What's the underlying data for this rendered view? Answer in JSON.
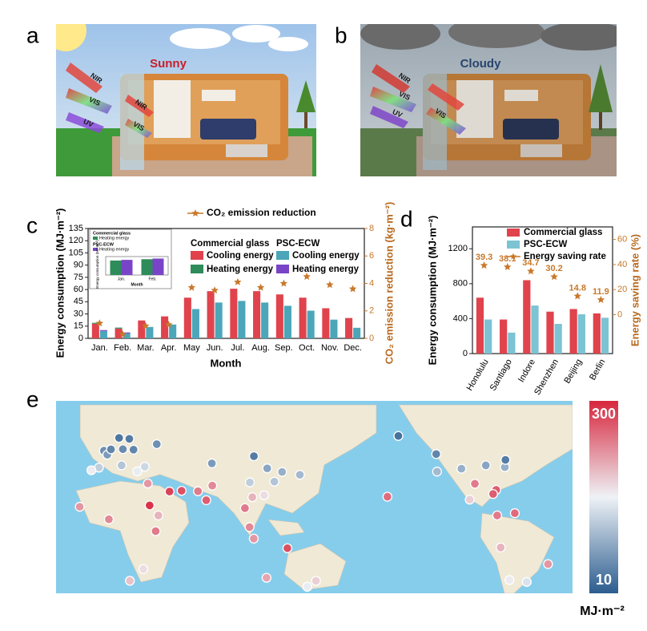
{
  "panel_labels": [
    "a",
    "b",
    "c",
    "d",
    "e"
  ],
  "scenes": [
    {
      "condition": "Sunny",
      "rays": [
        "NIR",
        "VIS",
        "UV",
        "NIR",
        "VIS"
      ]
    },
    {
      "condition": "Cloudy",
      "rays": [
        "NIR",
        "VIS",
        "UV",
        "VIS"
      ]
    }
  ],
  "chart_data": [
    {
      "type": "bar",
      "x_label": "Month",
      "y_label": "Energy consumption (MJ·m⁻²)",
      "y2_label": "CO₂ emission reduction (kg·m⁻²)",
      "categories": [
        "Jan.",
        "Feb.",
        "Mar.",
        "Apr.",
        "May",
        "Jun.",
        "Jul.",
        "Aug.",
        "Sep.",
        "Oct.",
        "Nov.",
        "Dec."
      ],
      "ylim": [
        0,
        135
      ],
      "yticks": [
        0,
        15,
        30,
        45,
        60,
        75,
        90,
        105,
        120,
        135
      ],
      "y2lim": [
        0,
        8
      ],
      "y2ticks": [
        0,
        2,
        4,
        6,
        8
      ],
      "legend_titles": [
        "Commercial glass",
        "PSC-ECW"
      ],
      "series": [
        {
          "name": "Cooling energy",
          "color": "#e0434c",
          "values": [
            18,
            12,
            22,
            27,
            50,
            58,
            61,
            58,
            54,
            50,
            37,
            25
          ]
        },
        {
          "name": "Heating energy",
          "color": "#2e8b5a",
          "values": [
            1.1,
            1.2,
            null,
            null,
            null,
            null,
            null,
            null,
            null,
            null,
            null,
            null
          ]
        },
        {
          "name": "Cooling energy",
          "color": "#4ba6b9",
          "values": [
            9,
            6,
            14,
            17,
            36,
            44,
            46,
            44,
            40,
            34,
            23,
            13
          ]
        },
        {
          "name": "Heating energy",
          "color": "#7a44c8",
          "values": [
            1.15,
            1.25,
            null,
            null,
            null,
            null,
            null,
            null,
            null,
            null,
            null,
            null
          ]
        },
        {
          "name": "CO₂ emission reduction",
          "type": "line",
          "axis": "y2",
          "color": "#c8782a",
          "values": [
            1.1,
            0.3,
            0.9,
            1.0,
            3.7,
            3.5,
            4.1,
            3.7,
            4.0,
            4.5,
            3.9,
            3.6
          ]
        }
      ],
      "inset": {
        "ylim": [
          0,
          1.4
        ]
      }
    },
    {
      "type": "bar",
      "y_label": "Energy consumption (MJ·m⁻²)",
      "y2_label": "Energy saving rate (%)",
      "categories": [
        "Honolulu",
        "Santiago",
        "Indore",
        "Shenzhen",
        "Beijing",
        "Berlin"
      ],
      "ylim": [
        0,
        1450
      ],
      "yticks": [
        0,
        400,
        800,
        1200
      ],
      "y2lim": [
        -31,
        70
      ],
      "y2ticks": [
        0,
        20,
        40,
        60
      ],
      "series": [
        {
          "name": "Commercial glass",
          "color": "#e0434c",
          "values": [
            640,
            390,
            840,
            480,
            510,
            460
          ]
        },
        {
          "name": "PSC-ECW",
          "color": "#7cc3d3",
          "values": [
            390,
            240,
            550,
            340,
            450,
            410
          ]
        },
        {
          "name": "Energy saving rate",
          "type": "line",
          "axis": "y2",
          "color": "#c8782a",
          "data_labels": true,
          "values": [
            39.3,
            38.1,
            34.7,
            30.2,
            14.8,
            11.9
          ]
        }
      ]
    }
  ],
  "map": {
    "colorbar": {
      "range": [
        10,
        300
      ],
      "label": "MJ·m⁻²",
      "colors": [
        "#2c5d8f",
        "#eef2f6",
        "#d7263d"
      ]
    },
    "points": [
      [
        -0.1,
        51.5,
        60
      ],
      [
        2.3,
        48.9,
        70
      ],
      [
        13.4,
        52.5,
        55
      ],
      [
        4.9,
        52.4,
        50
      ],
      [
        18,
        59.3,
        40
      ],
      [
        10.7,
        59.9,
        35
      ],
      [
        37.6,
        55.8,
        60
      ],
      [
        -3.7,
        40.4,
        120
      ],
      [
        12.5,
        41.9,
        110
      ],
      [
        21,
        52.2,
        50
      ],
      [
        29,
        41,
        130
      ],
      [
        23.7,
        38,
        150
      ],
      [
        -9.1,
        38.7,
        160
      ],
      [
        31.2,
        30,
        220
      ],
      [
        46.7,
        24.7,
        280
      ],
      [
        55.3,
        25.2,
        270
      ],
      [
        -17.4,
        14.7,
        220
      ],
      [
        3.4,
        6.5,
        230
      ],
      [
        32.5,
        15.6,
        290
      ],
      [
        38.7,
        9,
        200
      ],
      [
        36.8,
        -1.3,
        240
      ],
      [
        28,
        -26.2,
        170
      ],
      [
        18.4,
        -33.9,
        190
      ],
      [
        72.9,
        19,
        260
      ],
      [
        77.2,
        28.6,
        230
      ],
      [
        67,
        24.9,
        240
      ],
      [
        76.9,
        43.2,
        70
      ],
      [
        106.9,
        47.9,
        40
      ],
      [
        116.4,
        39.9,
        80
      ],
      [
        121.5,
        31.2,
        110
      ],
      [
        139.7,
        35.7,
        100
      ],
      [
        127,
        37.6,
        90
      ],
      [
        114.2,
        22.3,
        170
      ],
      [
        100.5,
        13.8,
        240
      ],
      [
        103.8,
        1.35,
        230
      ],
      [
        106.8,
        -6.2,
        220
      ],
      [
        105.8,
        21,
        200
      ],
      [
        104,
        30.7,
        120
      ],
      [
        115.9,
        -31.9,
        210
      ],
      [
        151.2,
        -33.9,
        180
      ],
      [
        145,
        -37.8,
        150
      ],
      [
        130.8,
        -12.5,
        270
      ],
      [
        -157.8,
        21.3,
        250
      ],
      [
        -150,
        61.2,
        30
      ],
      [
        -123,
        49.3,
        50
      ],
      [
        -122.4,
        37.8,
        100
      ],
      [
        -105,
        39.7,
        90
      ],
      [
        -87.6,
        41.9,
        80
      ],
      [
        -74,
        40.7,
        90
      ],
      [
        -80.2,
        25.8,
        260
      ],
      [
        -95.4,
        29.8,
        240
      ],
      [
        -99.1,
        19.4,
        180
      ],
      [
        -82.4,
        23.1,
        260
      ],
      [
        -79.5,
        9,
        240
      ],
      [
        -66.9,
        10.5,
        250
      ],
      [
        -77,
        -12,
        200
      ],
      [
        -70.7,
        -33.4,
        160
      ],
      [
        -58.4,
        -34.6,
        140
      ],
      [
        -43.2,
        -22.9,
        220
      ],
      [
        -73.6,
        45.5,
        40
      ]
    ]
  }
}
